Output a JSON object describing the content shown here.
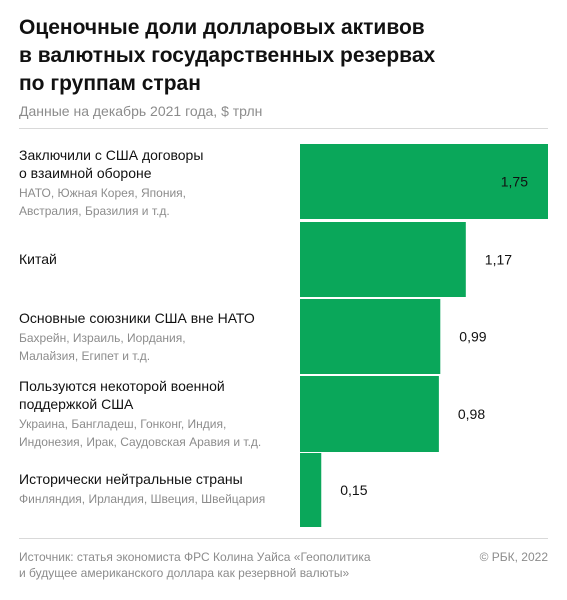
{
  "title": "Оценочные доли долларовых активов\nв валютных государственных резервах\nпо группам стран",
  "subtitle": "Данные на декабрь 2021 года, $ трлн",
  "source": "Источник: статья экономиста ФРС Колина Уайса «Геополитика\nи будущее американского доллара как резервной валюты»",
  "copyright": "© РБК, 2022",
  "colors": {
    "bar": "#0aa75a",
    "divider": "#d9d9d9",
    "muted": "#8c8c8c"
  },
  "chart_data": {
    "type": "bar",
    "orientation": "horizontal",
    "categories": [
      "Заключили с США договоры\nо взаимной обороне",
      "Китай",
      "Основные союзники США вне НАТО",
      "Пользуются некоторой военной\nподдержкой США",
      "Исторически нейтральные страны"
    ],
    "descriptions": [
      "НАТО, Южная Корея, Япония,\nАвстралия, Бразилия и т.д.",
      "",
      "Бахрейн, Израиль, Иордания,\nМалайзия, Египет и т.д.",
      "Украина, Бангладеш, Гонконг, Индия,\nИндонезия, Ирак, Саудовская Аравия и т.д.",
      "Финляндия, Ирландия, Швеция, Швейцария"
    ],
    "values": [
      1.75,
      1.17,
      0.99,
      0.98,
      0.15
    ],
    "value_labels": [
      "1,75",
      "1,17",
      "0,99",
      "0,98",
      "0,15"
    ],
    "unit": "$ трлн",
    "xlim": [
      0,
      1.75
    ]
  }
}
